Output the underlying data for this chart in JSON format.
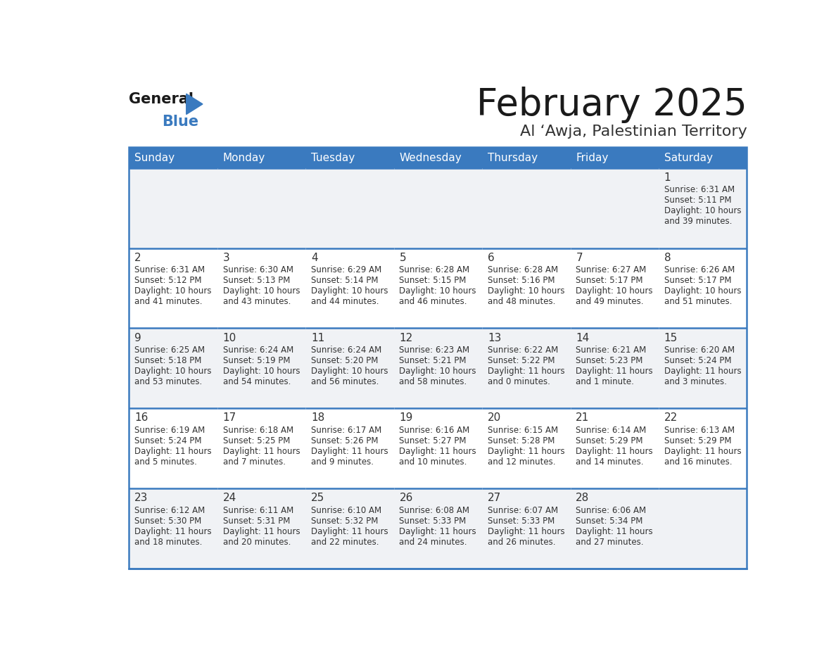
{
  "title": "February 2025",
  "subtitle": "Al ‘Awja, Palestinian Territory",
  "header_color": "#3a7abf",
  "header_text_color": "#ffffff",
  "cell_bg_color": "#f0f2f5",
  "cell_bg_white": "#ffffff",
  "border_color": "#3a7abf",
  "text_color": "#333333",
  "days_of_week": [
    "Sunday",
    "Monday",
    "Tuesday",
    "Wednesday",
    "Thursday",
    "Friday",
    "Saturday"
  ],
  "weeks": [
    [
      {
        "day": null,
        "info": null
      },
      {
        "day": null,
        "info": null
      },
      {
        "day": null,
        "info": null
      },
      {
        "day": null,
        "info": null
      },
      {
        "day": null,
        "info": null
      },
      {
        "day": null,
        "info": null
      },
      {
        "day": 1,
        "info": "Sunrise: 6:31 AM\nSunset: 5:11 PM\nDaylight: 10 hours\nand 39 minutes."
      }
    ],
    [
      {
        "day": 2,
        "info": "Sunrise: 6:31 AM\nSunset: 5:12 PM\nDaylight: 10 hours\nand 41 minutes."
      },
      {
        "day": 3,
        "info": "Sunrise: 6:30 AM\nSunset: 5:13 PM\nDaylight: 10 hours\nand 43 minutes."
      },
      {
        "day": 4,
        "info": "Sunrise: 6:29 AM\nSunset: 5:14 PM\nDaylight: 10 hours\nand 44 minutes."
      },
      {
        "day": 5,
        "info": "Sunrise: 6:28 AM\nSunset: 5:15 PM\nDaylight: 10 hours\nand 46 minutes."
      },
      {
        "day": 6,
        "info": "Sunrise: 6:28 AM\nSunset: 5:16 PM\nDaylight: 10 hours\nand 48 minutes."
      },
      {
        "day": 7,
        "info": "Sunrise: 6:27 AM\nSunset: 5:17 PM\nDaylight: 10 hours\nand 49 minutes."
      },
      {
        "day": 8,
        "info": "Sunrise: 6:26 AM\nSunset: 5:17 PM\nDaylight: 10 hours\nand 51 minutes."
      }
    ],
    [
      {
        "day": 9,
        "info": "Sunrise: 6:25 AM\nSunset: 5:18 PM\nDaylight: 10 hours\nand 53 minutes."
      },
      {
        "day": 10,
        "info": "Sunrise: 6:24 AM\nSunset: 5:19 PM\nDaylight: 10 hours\nand 54 minutes."
      },
      {
        "day": 11,
        "info": "Sunrise: 6:24 AM\nSunset: 5:20 PM\nDaylight: 10 hours\nand 56 minutes."
      },
      {
        "day": 12,
        "info": "Sunrise: 6:23 AM\nSunset: 5:21 PM\nDaylight: 10 hours\nand 58 minutes."
      },
      {
        "day": 13,
        "info": "Sunrise: 6:22 AM\nSunset: 5:22 PM\nDaylight: 11 hours\nand 0 minutes."
      },
      {
        "day": 14,
        "info": "Sunrise: 6:21 AM\nSunset: 5:23 PM\nDaylight: 11 hours\nand 1 minute."
      },
      {
        "day": 15,
        "info": "Sunrise: 6:20 AM\nSunset: 5:24 PM\nDaylight: 11 hours\nand 3 minutes."
      }
    ],
    [
      {
        "day": 16,
        "info": "Sunrise: 6:19 AM\nSunset: 5:24 PM\nDaylight: 11 hours\nand 5 minutes."
      },
      {
        "day": 17,
        "info": "Sunrise: 6:18 AM\nSunset: 5:25 PM\nDaylight: 11 hours\nand 7 minutes."
      },
      {
        "day": 18,
        "info": "Sunrise: 6:17 AM\nSunset: 5:26 PM\nDaylight: 11 hours\nand 9 minutes."
      },
      {
        "day": 19,
        "info": "Sunrise: 6:16 AM\nSunset: 5:27 PM\nDaylight: 11 hours\nand 10 minutes."
      },
      {
        "day": 20,
        "info": "Sunrise: 6:15 AM\nSunset: 5:28 PM\nDaylight: 11 hours\nand 12 minutes."
      },
      {
        "day": 21,
        "info": "Sunrise: 6:14 AM\nSunset: 5:29 PM\nDaylight: 11 hours\nand 14 minutes."
      },
      {
        "day": 22,
        "info": "Sunrise: 6:13 AM\nSunset: 5:29 PM\nDaylight: 11 hours\nand 16 minutes."
      }
    ],
    [
      {
        "day": 23,
        "info": "Sunrise: 6:12 AM\nSunset: 5:30 PM\nDaylight: 11 hours\nand 18 minutes."
      },
      {
        "day": 24,
        "info": "Sunrise: 6:11 AM\nSunset: 5:31 PM\nDaylight: 11 hours\nand 20 minutes."
      },
      {
        "day": 25,
        "info": "Sunrise: 6:10 AM\nSunset: 5:32 PM\nDaylight: 11 hours\nand 22 minutes."
      },
      {
        "day": 26,
        "info": "Sunrise: 6:08 AM\nSunset: 5:33 PM\nDaylight: 11 hours\nand 24 minutes."
      },
      {
        "day": 27,
        "info": "Sunrise: 6:07 AM\nSunset: 5:33 PM\nDaylight: 11 hours\nand 26 minutes."
      },
      {
        "day": 28,
        "info": "Sunrise: 6:06 AM\nSunset: 5:34 PM\nDaylight: 11 hours\nand 27 minutes."
      },
      {
        "day": null,
        "info": null
      }
    ]
  ],
  "logo_general_color": "#1a1a1a",
  "logo_blue_color": "#3a7abf",
  "logo_triangle_color": "#3a7abf",
  "title_fontsize": 38,
  "subtitle_fontsize": 16,
  "header_fontsize": 11,
  "day_number_fontsize": 11,
  "info_fontsize": 8.5
}
